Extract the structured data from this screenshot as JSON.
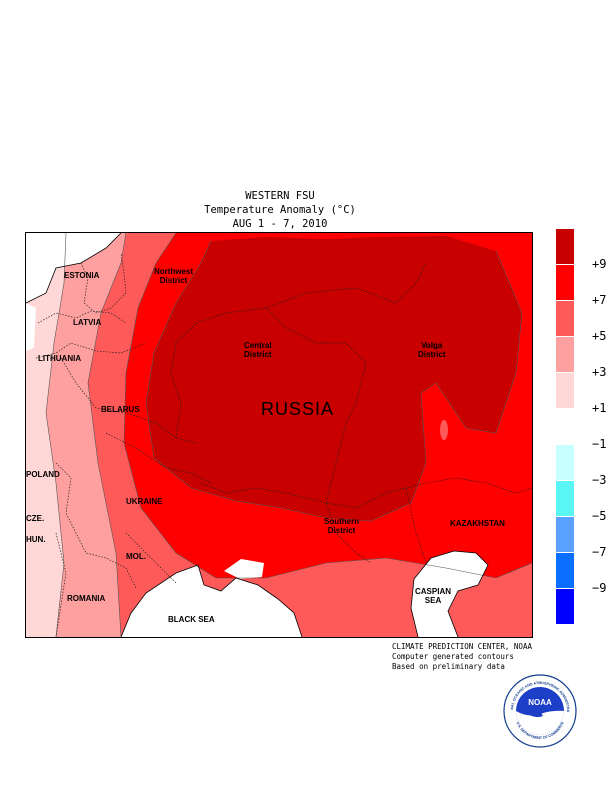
{
  "header": {
    "line1": "WESTERN FSU",
    "line2": "Temperature Anomaly (°C)",
    "line3": "AUG 1 - 7, 2010"
  },
  "map": {
    "labels": {
      "estonia": "ESTONIA",
      "latvia": "LATVIA",
      "lithuania": "LITHUANIA",
      "belarus": "BELARUS",
      "poland": "POLAND",
      "czech": "CZE.",
      "hungary": "HUN.",
      "ukraine": "UKRAINE",
      "moldova": "MOL.",
      "romania": "ROMANIA",
      "black_sea": "BLACK SEA",
      "russia": "RUSSIA",
      "northwest_l1": "Northwest",
      "northwest_l2": "District",
      "central_l1": "Central",
      "central_l2": "District",
      "volga_l1": "Volga",
      "volga_l2": "District",
      "southern_l1": "Southern",
      "southern_l2": "District",
      "kazakhstan": "KAZAKHSTAN",
      "caspian_l1": "CASPIAN",
      "caspian_l2": "SEA"
    }
  },
  "legend": {
    "colors": [
      "#c80000",
      "#ff0000",
      "#ff5a5a",
      "#ffa0a0",
      "#ffd7d7",
      "#ffffff",
      "#c8ffff",
      "#5af5f5",
      "#5aa0ff",
      "#0a6eff",
      "#0000ff"
    ],
    "ticks": [
      "+9",
      "+7",
      "+5",
      "+3",
      "+1",
      "−1",
      "−3",
      "−5",
      "−7",
      "−9"
    ]
  },
  "credits": {
    "line1": "CLIMATE PREDICTION CENTER, NOAA",
    "line2": "Computer generated contours",
    "line3": "Based on preliminary data"
  },
  "logo": {
    "text": "NOAA",
    "ring_top": "NATIONAL OCEANIC AND ATMOSPHERIC ADMINISTRATION",
    "ring_bottom": "U.S. DEPARTMENT OF COMMERCE"
  }
}
